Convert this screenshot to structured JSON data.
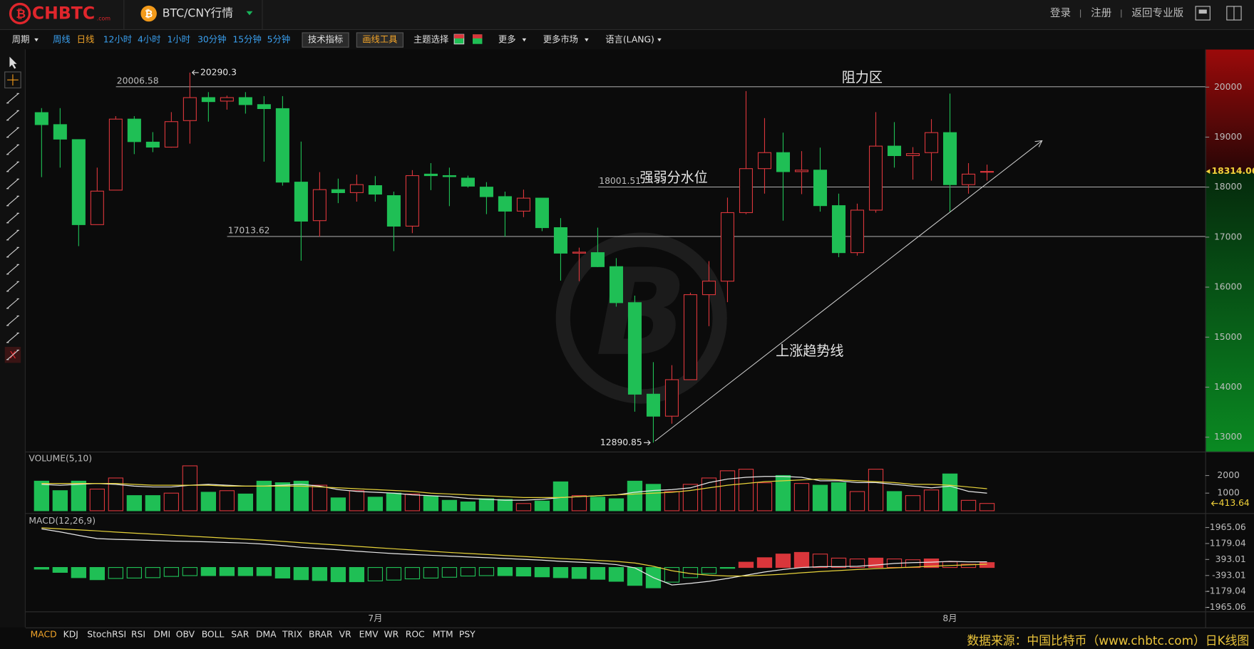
{
  "header": {
    "logo": "CHBTC",
    "logo_suffix": ".com",
    "market": "BTC/CNY行情",
    "links": [
      "登录",
      "注册",
      "返回专业版"
    ]
  },
  "toolbar": {
    "period": "周期",
    "periods": [
      "周线",
      "日线",
      "12小时",
      "4小时",
      "1小时",
      "30分钟",
      "15分钟",
      "5分钟"
    ],
    "active_period": 1,
    "buttons": [
      "技术指标",
      "画线工具"
    ],
    "theme": "主题选择",
    "menus": [
      "更多",
      "更多市场",
      "语言(LANG)"
    ]
  },
  "chart_data": {
    "type": "candlestick",
    "up_color": "#d9363b",
    "down_color": "#1fbf55",
    "categories": [
      null,
      null,
      null,
      null,
      null,
      null,
      null,
      null,
      null,
      null,
      null,
      null,
      null,
      null,
      null,
      null,
      null,
      null,
      "7月",
      null,
      null,
      null,
      null,
      null,
      null,
      null,
      null,
      null,
      null,
      null,
      null,
      null,
      null,
      null,
      null,
      null,
      null,
      null,
      null,
      null,
      null,
      null,
      null,
      null,
      null,
      null,
      null,
      null,
      null,
      "8月",
      null,
      null
    ],
    "open": [
      19490,
      19250,
      18950,
      17250,
      17940,
      19360,
      18900,
      18800,
      19330,
      19790,
      19720,
      19790,
      19650,
      19570,
      18100,
      17330,
      17950,
      17890,
      18030,
      17830,
      17220,
      18260,
      18230,
      18180,
      18000,
      17810,
      17520,
      17780,
      17190,
      16680,
      16690,
      16410,
      15690,
      13860,
      13420,
      14150,
      15850,
      16120,
      17490,
      18370,
      18690,
      18310,
      18340,
      17630,
      16690,
      17540,
      18820,
      18630,
      18690,
      19090,
      18050,
      18300
    ],
    "high": [
      19580,
      19580,
      18950,
      18390,
      19420,
      19420,
      19100,
      19500,
      20290.3,
      19900,
      19830,
      19900,
      19820,
      19820,
      18910,
      18300,
      18170,
      18250,
      18220,
      17910,
      18340,
      18480,
      18390,
      18230,
      18100,
      17910,
      17950,
      17780,
      17380,
      16790,
      17190,
      16580,
      15830,
      14500,
      14440,
      15890,
      16520,
      17790,
      19920,
      19380,
      19090,
      18720,
      18790,
      17870,
      17670,
      19500,
      19300,
      18800,
      19360,
      19870,
      18480,
      18450
    ],
    "low": [
      18200,
      18390,
      16820,
      17250,
      17940,
      18660,
      18700,
      18790,
      18870,
      19310,
      19550,
      19470,
      18510,
      18030,
      16530,
      17010,
      17680,
      17710,
      17710,
      16720,
      17080,
      17940,
      17620,
      17990,
      17460,
      17010,
      17400,
      17120,
      16130,
      16120,
      16400,
      15610,
      13510,
      12890.85,
      13270,
      14150,
      15220,
      15700,
      17460,
      17870,
      17330,
      17860,
      17510,
      16600,
      16630,
      17490,
      18390,
      18150,
      18130,
      17510,
      17870,
      18130
    ],
    "close": [
      19250,
      18960,
      17250,
      17920,
      19360,
      18910,
      18800,
      19310,
      19790,
      19710,
      19790,
      19650,
      19570,
      18100,
      17320,
      17950,
      17890,
      18050,
      17860,
      17220,
      18230,
      18230,
      18210,
      18020,
      17810,
      17520,
      17780,
      17190,
      16680,
      16700,
      16410,
      15690,
      13860,
      13420,
      14150,
      15850,
      16120,
      17490,
      18370,
      18690,
      18310,
      18340,
      17630,
      16690,
      17540,
      18820,
      18630,
      18670,
      19090,
      18050,
      18260,
      18314.06
    ],
    "ylim": [
      12712,
      20751
    ],
    "yticks": [
      13000,
      14000,
      15000,
      16000,
      17000,
      18000,
      19000,
      20000
    ],
    "levels": [
      {
        "value": 20006.58,
        "label": "阻力区"
      },
      {
        "value": 18001.51,
        "label": "强弱分水位"
      },
      {
        "value": 17013.62
      }
    ],
    "trend_label": "上涨趋势线",
    "volume": {
      "title": "VOLUME(5,10)",
      "values": [
        1680,
        1140,
        1680,
        1230,
        1860,
        860,
        860,
        1000,
        2550,
        1050,
        1140,
        950,
        1680,
        1590,
        1680,
        1450,
        730,
        1140,
        770,
        1000,
        950,
        820,
        590,
        500,
        680,
        640,
        410,
        550,
        1640,
        860,
        770,
        680,
        1680,
        1500,
        1090,
        1500,
        1860,
        2270,
        2360,
        1590,
        2000,
        1550,
        1450,
        1590,
        1090,
        2360,
        1090,
        860,
        1180,
        2090,
        590,
        413.64
      ],
      "lines": [
        {
          "color": "#e8e8e8",
          "values": [
            1500,
            1450,
            1500,
            1550,
            1500,
            1400,
            1350,
            1350,
            1450,
            1500,
            1450,
            1400,
            1400,
            1450,
            1500,
            1400,
            1200,
            1100,
            1050,
            1000,
            900,
            850,
            800,
            700,
            650,
            600,
            600,
            650,
            750,
            800,
            850,
            900,
            1050,
            1150,
            1200,
            1300,
            1600,
            1800,
            1900,
            1950,
            1950,
            1900,
            1700,
            1700,
            1600,
            1600,
            1500,
            1400,
            1300,
            1400,
            1100,
            1000
          ]
        },
        {
          "color": "#e6d23a",
          "values": [
            1550,
            1550,
            1550,
            1550,
            1550,
            1500,
            1450,
            1450,
            1450,
            1450,
            1400,
            1400,
            1400,
            1400,
            1400,
            1350,
            1300,
            1250,
            1200,
            1150,
            1100,
            1000,
            950,
            900,
            850,
            800,
            750,
            750,
            750,
            800,
            850,
            900,
            950,
            1000,
            1050,
            1150,
            1300,
            1450,
            1550,
            1650,
            1700,
            1750,
            1800,
            1750,
            1700,
            1650,
            1600,
            1500,
            1500,
            1450,
            1350,
            1250
          ]
        }
      ],
      "ylim": [
        0,
        3270
      ],
      "yticks": [
        1000,
        2000
      ]
    },
    "macd": {
      "title": "MACD(12,26,9)",
      "histogram": [
        -80,
        -240,
        -500,
        -600,
        -540,
        -520,
        -500,
        -440,
        -400,
        -400,
        -400,
        -400,
        -400,
        -520,
        -600,
        -640,
        -700,
        -700,
        -660,
        -620,
        -560,
        -520,
        -480,
        -420,
        -400,
        -400,
        -420,
        -460,
        -500,
        -540,
        -580,
        -680,
        -880,
        -1000,
        -720,
        -500,
        -300,
        -40,
        260,
        480,
        660,
        740,
        660,
        460,
        420,
        460,
        420,
        380,
        420,
        280,
        160,
        240
      ],
      "lines": [
        {
          "color": "#e8e8e8",
          "values": [
            1900,
            1750,
            1580,
            1420,
            1380,
            1360,
            1330,
            1300,
            1280,
            1260,
            1230,
            1200,
            1150,
            1080,
            990,
            930,
            870,
            800,
            740,
            680,
            640,
            600,
            560,
            520,
            480,
            440,
            400,
            360,
            300,
            260,
            220,
            140,
            -20,
            -500,
            -860,
            -780,
            -680,
            -540,
            -380,
            -220,
            -100,
            0,
            40,
            40,
            60,
            120,
            200,
            240,
            260,
            300,
            280,
            280
          ]
        },
        {
          "color": "#e6d23a",
          "values": [
            1950,
            1900,
            1850,
            1800,
            1740,
            1690,
            1640,
            1590,
            1540,
            1490,
            1440,
            1390,
            1340,
            1280,
            1220,
            1160,
            1100,
            1040,
            980,
            920,
            860,
            800,
            740,
            690,
            640,
            590,
            540,
            490,
            440,
            400,
            350,
            300,
            220,
            60,
            -160,
            -300,
            -380,
            -420,
            -420,
            -380,
            -330,
            -260,
            -200,
            -150,
            -100,
            -60,
            -20,
            20,
            60,
            100,
            130,
            160
          ]
        }
      ],
      "ylim": [
        -2162,
        2555
      ],
      "yticks": [
        1965.06,
        1179.04,
        393.01,
        -393.01,
        -1179.04,
        -1965.06
      ]
    }
  },
  "indicator_tabs": [
    "MACD",
    "KDJ",
    "StochRSI",
    "RSI",
    "DMI",
    "OBV",
    "BOLL",
    "SAR",
    "DMA",
    "TRIX",
    "BRAR",
    "VR",
    "EMV",
    "WR",
    "ROC",
    "MTM",
    "PSY"
  ],
  "active_tab": 0,
  "footer": "数据来源：中国比特币（www.chbtc.com）日K线图"
}
